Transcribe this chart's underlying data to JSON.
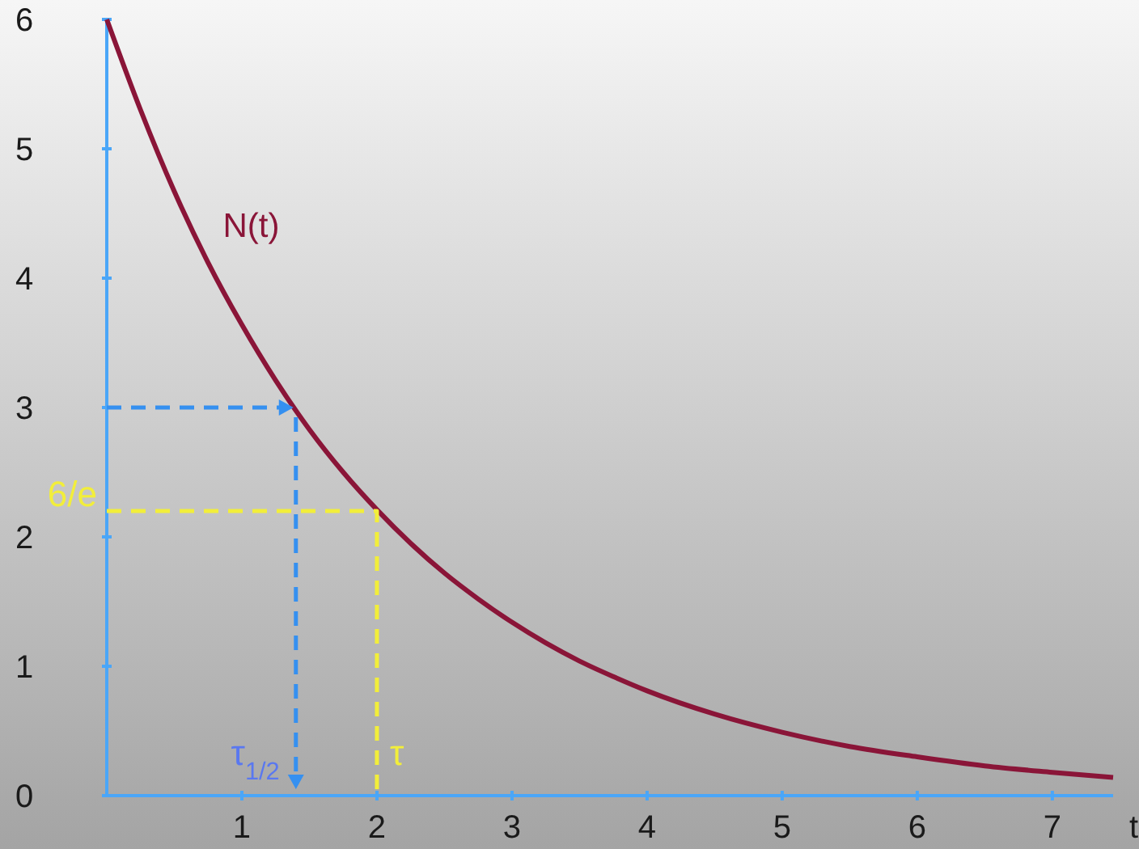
{
  "chart_data": {
    "type": "line",
    "xlabel": "t",
    "xlim": [
      0,
      7.45
    ],
    "ylim": [
      0,
      6
    ],
    "xticks": [
      1,
      2,
      3,
      4,
      5,
      6,
      7
    ],
    "yticks": [
      0,
      1,
      2,
      3,
      4,
      5,
      6
    ],
    "series": [
      {
        "name": "N(t)",
        "color": "#8a1538",
        "line_style": "solid",
        "x": [
          0,
          0.25,
          0.5,
          0.75,
          1,
          1.25,
          1.5,
          1.75,
          2,
          2.25,
          2.5,
          2.75,
          3,
          3.25,
          3.5,
          3.75,
          4,
          4.5,
          5,
          5.5,
          6,
          6.5,
          7,
          7.45
        ],
        "values": [
          6.0,
          5.3,
          4.67,
          4.12,
          3.64,
          3.21,
          2.83,
          2.5,
          2.21,
          1.95,
          1.72,
          1.52,
          1.34,
          1.18,
          1.04,
          0.92,
          0.81,
          0.63,
          0.49,
          0.38,
          0.3,
          0.23,
          0.18,
          0.14
        ]
      },
      {
        "color": "#f2ee3a",
        "line_style": "dashed",
        "x": [
          0,
          2,
          2
        ],
        "values": [
          2.2,
          2.2,
          0
        ]
      }
    ],
    "annotations": [
      {
        "text": "6/e",
        "x": 0,
        "y": 2.2
      },
      {
        "text": "τ$_{1/2}$",
        "x": 1.4,
        "y": 3
      },
      {
        "text": "τ",
        "x": 2,
        "y": 0.2
      }
    ]
  }
}
